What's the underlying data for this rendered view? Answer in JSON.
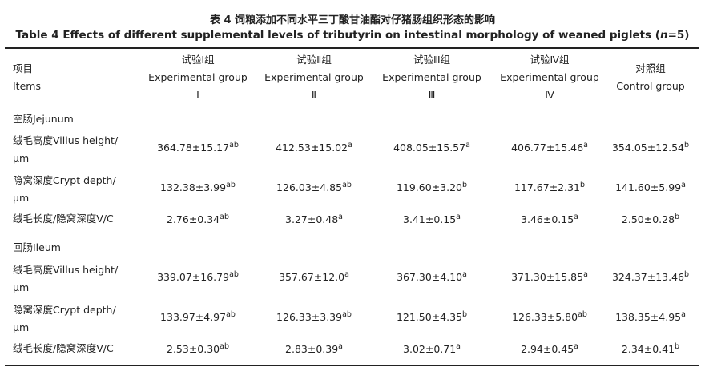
{
  "title_cn": "表 4 饲粮添加不同水平三丁酸甘油酯对仔猪肠组织形态的影响",
  "title_en_main": "Table 4 Effects of different supplemental levels of tributyrin on intestinal morphology of weaned piglets (",
  "title_en_n": "n",
  "title_en_tail": "=5)",
  "header": {
    "items_cn": "项目",
    "items_en": "Items",
    "columns": [
      {
        "cn": "试验Ⅰ组",
        "en": "Experimental group",
        "roman": "Ⅰ"
      },
      {
        "cn": "试验Ⅱ组",
        "en": "Experimental group",
        "roman": "Ⅱ"
      },
      {
        "cn": "试验Ⅲ组",
        "en": "Experimental group",
        "roman": "Ⅲ"
      },
      {
        "cn": "试验Ⅳ组",
        "en": "Experimental group",
        "roman": "Ⅳ"
      },
      {
        "cn": "对照组",
        "en": "Control group",
        "roman": ""
      }
    ]
  },
  "sections": [
    {
      "name": "空肠Jejunum",
      "rows": [
        {
          "label1": "绒毛高度Villus height/",
          "label2": "μm",
          "cells": [
            {
              "v": "364.78±15.17",
              "s": "ab"
            },
            {
              "v": "412.53±15.02",
              "s": "a"
            },
            {
              "v": "408.05±15.57",
              "s": "a"
            },
            {
              "v": "406.77±15.46",
              "s": "a"
            },
            {
              "v": "354.05±12.54",
              "s": "b"
            }
          ]
        },
        {
          "label1": "隐窝深度Crypt depth/",
          "label2": "μm",
          "cells": [
            {
              "v": "132.38±3.99",
              "s": "ab"
            },
            {
              "v": "126.03±4.85",
              "s": "ab"
            },
            {
              "v": "119.60±3.20",
              "s": "b"
            },
            {
              "v": "117.67±2.31",
              "s": "b"
            },
            {
              "v": "141.60±5.99",
              "s": "a"
            }
          ]
        },
        {
          "label1": "绒毛长度/隐窝深度V/C",
          "label2": "",
          "cells": [
            {
              "v": "2.76±0.34",
              "s": "ab"
            },
            {
              "v": "3.27±0.48",
              "s": "a"
            },
            {
              "v": "3.41±0.15",
              "s": "a"
            },
            {
              "v": "3.46±0.15",
              "s": "a"
            },
            {
              "v": "2.50±0.28",
              "s": "b"
            }
          ]
        }
      ]
    },
    {
      "name": "回肠Ileum",
      "rows": [
        {
          "label1": "绒毛高度Villus height/",
          "label2": "μm",
          "cells": [
            {
              "v": "339.07±16.79",
              "s": "ab"
            },
            {
              "v": "357.67±12.0",
              "s": "a"
            },
            {
              "v": "367.30±4.10",
              "s": "a"
            },
            {
              "v": "371.30±15.85",
              "s": "a"
            },
            {
              "v": "324.37±13.46",
              "s": "b"
            }
          ]
        },
        {
          "label1": "隐窝深度Crypt depth/",
          "label2": "μm",
          "cells": [
            {
              "v": "133.97±4.97",
              "s": "ab"
            },
            {
              "v": "126.33±3.39",
              "s": "ab"
            },
            {
              "v": "121.50±4.35",
              "s": "b"
            },
            {
              "v": "126.33±5.80",
              "s": "ab"
            },
            {
              "v": "138.35±4.95",
              "s": "a"
            }
          ]
        },
        {
          "label1": "绒毛长度/隐窝深度V/C",
          "label2": "",
          "cells": [
            {
              "v": "2.53±0.30",
              "s": "ab"
            },
            {
              "v": "2.83±0.39",
              "s": "a"
            },
            {
              "v": "3.02±0.71",
              "s": "a"
            },
            {
              "v": "2.94±0.45",
              "s": "a"
            },
            {
              "v": "2.34±0.41",
              "s": "b"
            }
          ]
        }
      ]
    }
  ]
}
